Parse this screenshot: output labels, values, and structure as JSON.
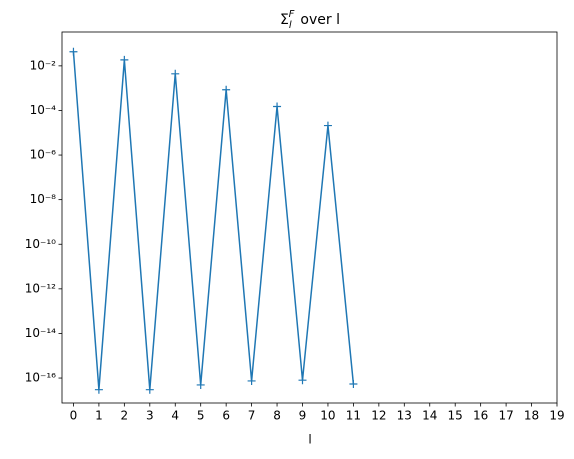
{
  "chart_data": {
    "type": "line",
    "title": {
      "symbol": "Σ",
      "sub": "l",
      "sup": "F",
      "text": "over l"
    },
    "xlabel": "l",
    "x": [
      0,
      1,
      2,
      3,
      4,
      5,
      6,
      7,
      8,
      9,
      10,
      11
    ],
    "series": [
      {
        "color": "#1f77b4",
        "marker": "+",
        "values": [
          0.043,
          3e-17,
          0.0185,
          3e-17,
          0.0044,
          4.9e-17,
          0.00085,
          7.4e-17,
          0.00015,
          8e-17,
          2.1e-05,
          5.4e-17
        ]
      }
    ],
    "xlim": [
      -0.45,
      19
    ],
    "xticks": [
      0,
      1,
      2,
      3,
      4,
      5,
      6,
      7,
      8,
      9,
      10,
      11,
      12,
      13,
      14,
      15,
      16,
      17,
      18,
      19
    ],
    "yscale": "log",
    "ylim": [
      7.6e-18,
      0.33
    ],
    "yticks": [
      {
        "value": 0.01,
        "label": "10⁻²"
      },
      {
        "value": 0.0001,
        "label": "10⁻⁴"
      },
      {
        "value": 1e-06,
        "label": "10⁻⁶"
      },
      {
        "value": 1e-08,
        "label": "10⁻⁸"
      },
      {
        "value": 1e-10,
        "label": "10⁻¹⁰"
      },
      {
        "value": 1e-12,
        "label": "10⁻¹²"
      },
      {
        "value": 1e-14,
        "label": "10⁻¹⁴"
      },
      {
        "value": 1e-16,
        "label": "10⁻¹⁶"
      }
    ]
  }
}
